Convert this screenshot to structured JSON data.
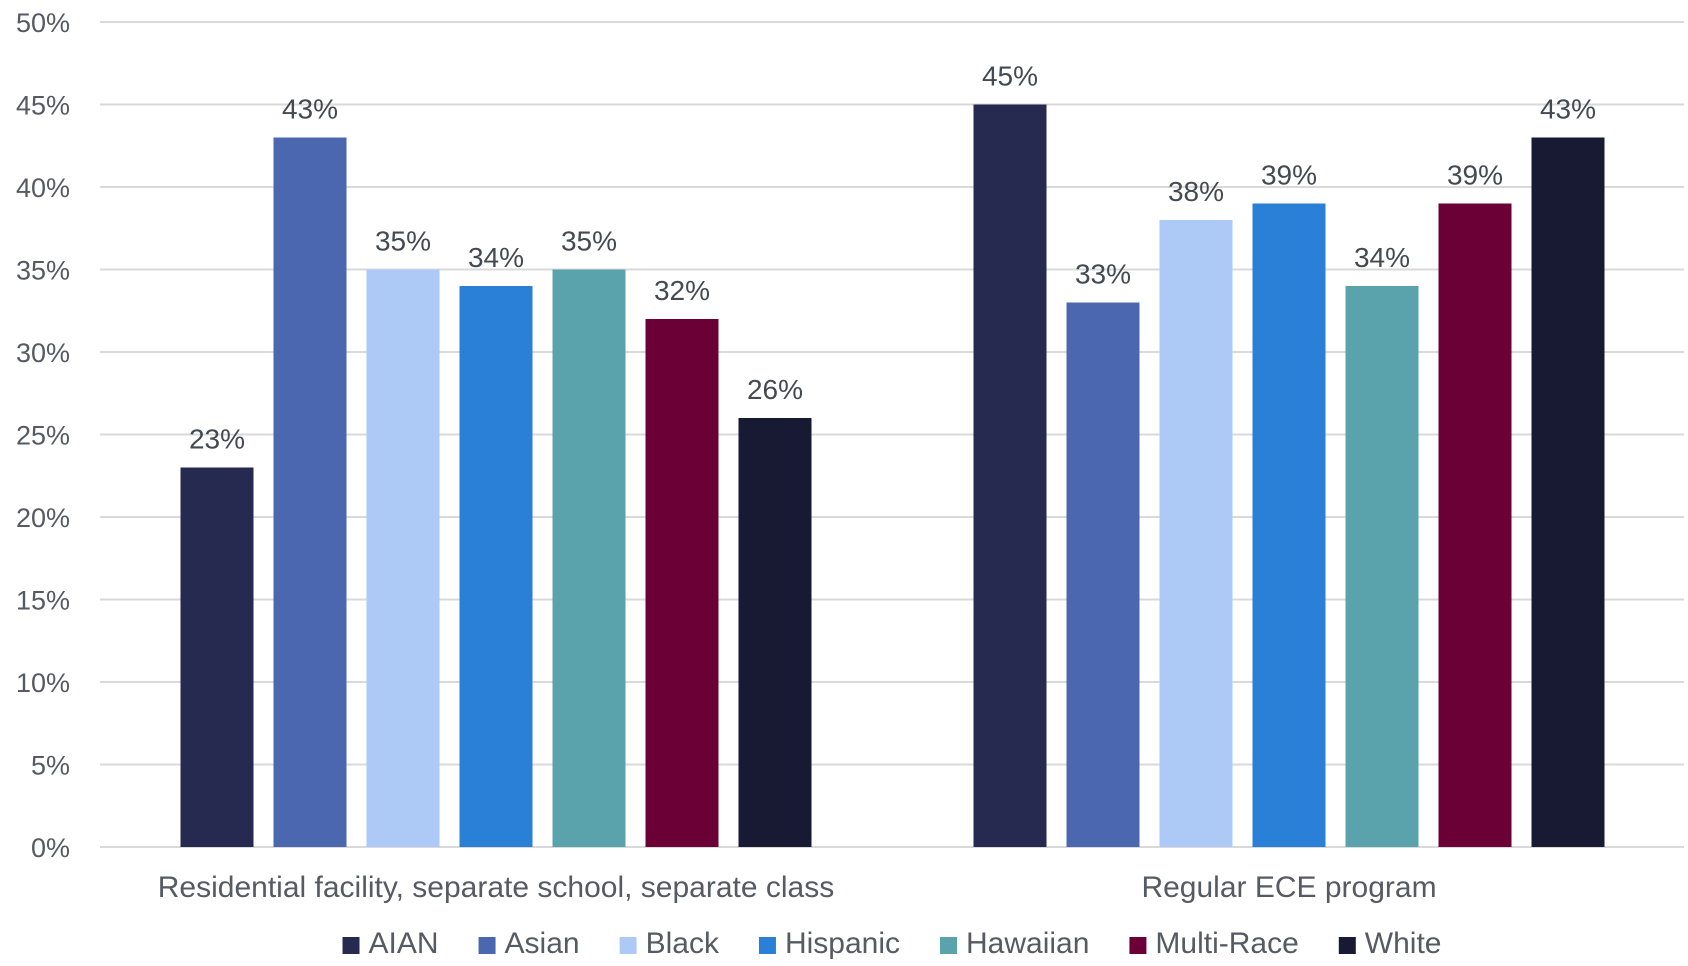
{
  "chart_data": {
    "type": "bar",
    "categories": [
      "Residential facility, separate school, separate class",
      "Regular ECE program"
    ],
    "series": [
      {
        "name": "AIAN",
        "color": "#262950",
        "values": [
          23,
          45
        ]
      },
      {
        "name": "Asian",
        "color": "#4a67b0",
        "values": [
          43,
          33
        ]
      },
      {
        "name": "Black",
        "color": "#adcaf7",
        "values": [
          35,
          38
        ]
      },
      {
        "name": "Hispanic",
        "color": "#2a7fd6",
        "values": [
          34,
          39
        ]
      },
      {
        "name": "Hawaiian",
        "color": "#5aa3ac",
        "values": [
          35,
          34
        ]
      },
      {
        "name": "Multi-Race",
        "color": "#6a0036",
        "values": [
          32,
          39
        ]
      },
      {
        "name": "White",
        "color": "#181932",
        "values": [
          26,
          43
        ]
      }
    ],
    "ylim": [
      0,
      50
    ],
    "yticks": [
      0,
      5,
      10,
      15,
      20,
      25,
      30,
      35,
      40,
      45,
      50
    ],
    "value_suffix": "%",
    "grid": true,
    "legend": "bottom"
  }
}
